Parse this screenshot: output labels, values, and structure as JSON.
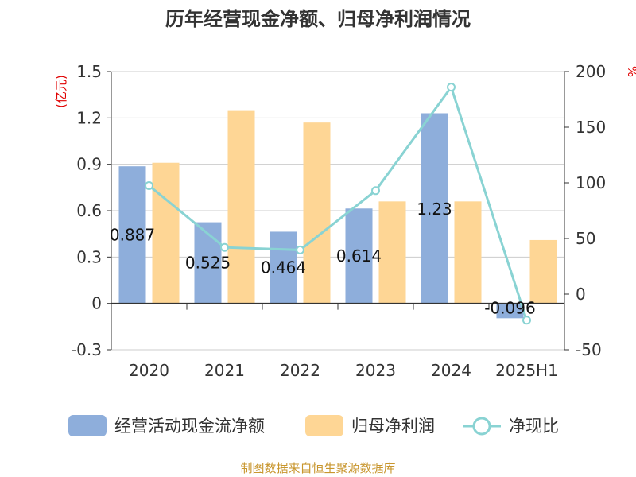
{
  "title": "历年经营现金净额、归母净利润情况",
  "source": "制图数据来自恒生聚源数据库",
  "colors": {
    "cash": "#8eaedb",
    "profit": "#fed695",
    "ratio": "#89d3d3",
    "axis": "#333333",
    "grid": "#cccccc",
    "unit": "#e00000",
    "source": "#c8962e"
  },
  "chart_data": {
    "type": "bar",
    "categories": [
      "2020",
      "2021",
      "2022",
      "2023",
      "2024",
      "2025H1"
    ],
    "left_unit": "(亿元)",
    "right_unit": "%",
    "ylim_left": [
      -0.3,
      1.5
    ],
    "ylim_right": [
      -50,
      200
    ],
    "yticks_left": [
      "1.5",
      "1.2",
      "0.9",
      "0.6",
      "0.3",
      "0",
      "-0.3"
    ],
    "yticks_right": [
      "200",
      "150",
      "100",
      "50",
      "0",
      "-50"
    ],
    "grid": true,
    "legend_position": "bottom",
    "series": [
      {
        "name": "经营活动现金流净额",
        "type": "bar",
        "axis": "left",
        "values": [
          0.887,
          0.525,
          0.464,
          0.614,
          1.23,
          -0.096
        ],
        "labels": [
          "0.887",
          "0.525",
          "0.464",
          "0.614",
          "1.23",
          "-0.096"
        ]
      },
      {
        "name": "归母净利润",
        "type": "bar",
        "axis": "left",
        "values": [
          0.91,
          1.25,
          1.17,
          0.66,
          0.66,
          0.41
        ]
      },
      {
        "name": "净现比",
        "type": "line",
        "axis": "right",
        "values": [
          97.5,
          42,
          39.7,
          93,
          186,
          -23.4
        ]
      }
    ]
  }
}
